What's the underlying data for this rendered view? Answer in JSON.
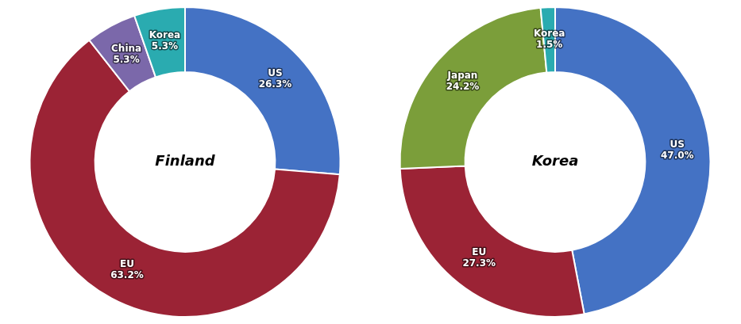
{
  "chart_data": [
    {
      "type": "doughnut",
      "title": "Finland",
      "categories": [
        "US",
        "EU",
        "China",
        "Korea"
      ],
      "values": [
        26.3,
        63.2,
        5.3,
        5.3
      ],
      "value_labels": [
        "26.3%",
        "63.2%",
        "5.3%",
        "5.3%"
      ],
      "colors": [
        "#4472C4",
        "#9B2335",
        "#7B68AA",
        "#2AABB0"
      ],
      "data_labels": true,
      "legend": false
    },
    {
      "type": "doughnut",
      "title": "Korea",
      "categories": [
        "US",
        "EU",
        "Japan",
        "Korea"
      ],
      "values": [
        47.0,
        27.3,
        24.2,
        1.5
      ],
      "value_labels": [
        "47.0%",
        "27.3%",
        "24.2%",
        "1.5%"
      ],
      "colors": [
        "#4472C4",
        "#9B2335",
        "#7B9E3A",
        "#2AABB0"
      ],
      "data_labels": true,
      "legend": false
    }
  ]
}
